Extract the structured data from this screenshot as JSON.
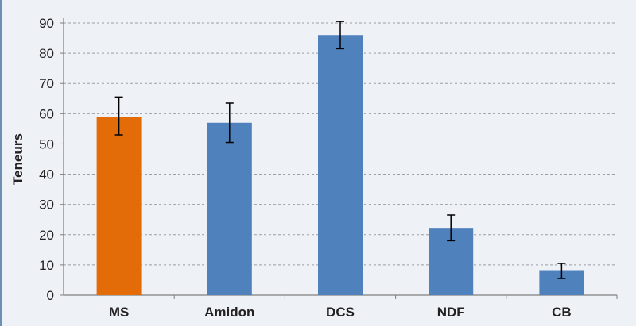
{
  "chart_data": {
    "type": "bar",
    "title": "",
    "xlabel": "",
    "ylabel": "Teneurs",
    "ylim": [
      0,
      90
    ],
    "yticks": [
      0,
      10,
      20,
      30,
      40,
      50,
      60,
      70,
      80,
      90
    ],
    "grid": true,
    "categories": [
      "MS",
      "Amidon",
      "DCS",
      "NDF",
      "CB"
    ],
    "values": [
      59,
      57,
      86,
      22,
      8
    ],
    "error_low": [
      53,
      50.5,
      81.5,
      18,
      5.5
    ],
    "error_high": [
      65.5,
      63.5,
      90.5,
      26.5,
      10.5
    ],
    "colors": [
      "#e36c09",
      "#4f81bd",
      "#4f81bd",
      "#4f81bd",
      "#4f81bd"
    ]
  },
  "theme": {
    "background": "#eef1f6",
    "gridline": "#9aa0a6",
    "axis": "#7f7f7f",
    "text": "#222222",
    "error_bar": "#000000",
    "left_rule": "#6d8fb3"
  }
}
